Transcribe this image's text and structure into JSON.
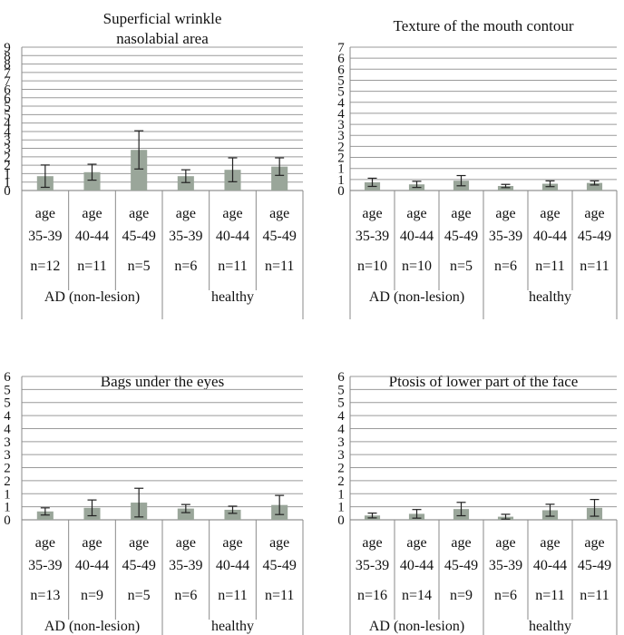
{
  "chart_data": [
    {
      "type": "bar",
      "title": [
        "Superficial wrinkle",
        "nasolabial area"
      ],
      "ylim": [
        0,
        9
      ],
      "yticks": [
        "0",
        "1",
        "1",
        "2",
        "2",
        "3",
        "3",
        "4",
        "4",
        "5",
        "5",
        "6",
        "6",
        "7",
        "7",
        "8",
        "8",
        "9"
      ],
      "categories": [
        {
          "age": "age",
          "range": "35-39",
          "n": "n=12"
        },
        {
          "age": "age",
          "range": "40-44",
          "n": "n=11"
        },
        {
          "age": "age",
          "range": "45-49",
          "n": "n=5"
        },
        {
          "age": "age",
          "range": "35-39",
          "n": "n=6"
        },
        {
          "age": "age",
          "range": "40-44",
          "n": "n=11"
        },
        {
          "age": "age",
          "range": "45-49",
          "n": "n=11"
        }
      ],
      "groups": [
        "AD (non-lesion)",
        "healthy"
      ],
      "values": [
        0.9,
        1.15,
        2.55,
        0.9,
        1.3,
        1.5
      ],
      "errors": [
        0.7,
        0.5,
        1.2,
        0.4,
        0.75,
        0.55
      ],
      "grid": true,
      "bar_color": "#9aa69a"
    },
    {
      "type": "bar",
      "title": [
        "Texture of the mouth contour"
      ],
      "ylim": [
        0,
        7
      ],
      "yticks": [
        "0",
        "1",
        "1",
        "2",
        "2",
        "3",
        "3",
        "4",
        "4",
        "5",
        "5",
        "6",
        "6",
        "7"
      ],
      "categories": [
        {
          "age": "age",
          "range": "35-39",
          "n": "n=10"
        },
        {
          "age": "age",
          "range": "40-44",
          "n": "n=10"
        },
        {
          "age": "age",
          "range": "45-49",
          "n": "n=5"
        },
        {
          "age": "age",
          "range": "35-39",
          "n": "n=6"
        },
        {
          "age": "age",
          "range": "40-44",
          "n": "n=11"
        },
        {
          "age": "age",
          "range": "45-49",
          "n": "n=11"
        }
      ],
      "groups": [
        "AD (non-lesion)",
        "healthy"
      ],
      "values": [
        0.4,
        0.3,
        0.48,
        0.22,
        0.33,
        0.37
      ],
      "errors": [
        0.2,
        0.15,
        0.25,
        0.08,
        0.14,
        0.1
      ],
      "grid": true,
      "bar_color": "#9aa69a"
    },
    {
      "type": "bar",
      "title": [
        "Bags under the eyes"
      ],
      "ylim": [
        0,
        6
      ],
      "yticks": [
        "0",
        "1",
        "1",
        "2",
        "2",
        "3",
        "3",
        "4",
        "4",
        "5",
        "5",
        "6"
      ],
      "categories": [
        {
          "age": "age",
          "range": "35-39",
          "n": "n=13"
        },
        {
          "age": "age",
          "range": "40-44",
          "n": "n=9"
        },
        {
          "age": "age",
          "range": "45-49",
          "n": "n=5"
        },
        {
          "age": "age",
          "range": "35-39",
          "n": "n=6"
        },
        {
          "age": "age",
          "range": "40-44",
          "n": "n=11"
        },
        {
          "age": "age",
          "range": "45-49",
          "n": "n=11"
        }
      ],
      "groups": [
        "AD (non-lesion)",
        "healthy"
      ],
      "values": [
        0.35,
        0.5,
        0.72,
        0.47,
        0.42,
        0.62
      ],
      "errors": [
        0.15,
        0.33,
        0.6,
        0.17,
        0.15,
        0.4
      ],
      "grid": true,
      "bar_color": "#9aa69a"
    },
    {
      "type": "bar",
      "title": [
        "Ptosis of lower part of the face"
      ],
      "ylim": [
        0,
        6
      ],
      "yticks": [
        "0",
        "1",
        "1",
        "2",
        "2",
        "3",
        "3",
        "4",
        "4",
        "5",
        "5",
        "6"
      ],
      "categories": [
        {
          "age": "age",
          "range": "35-39",
          "n": "n=16"
        },
        {
          "age": "age",
          "range": "40-44",
          "n": "n=14"
        },
        {
          "age": "age",
          "range": "45-49",
          "n": "n=9"
        },
        {
          "age": "age",
          "range": "35-39",
          "n": "n=6"
        },
        {
          "age": "age",
          "range": "40-44",
          "n": "n=11"
        },
        {
          "age": "age",
          "range": "45-49",
          "n": "n=11"
        }
      ],
      "groups": [
        "AD (non-lesion)",
        "healthy"
      ],
      "values": [
        0.18,
        0.25,
        0.45,
        0.13,
        0.4,
        0.5
      ],
      "errors": [
        0.1,
        0.18,
        0.28,
        0.1,
        0.25,
        0.35
      ],
      "grid": true,
      "bar_color": "#9aa69a"
    }
  ]
}
